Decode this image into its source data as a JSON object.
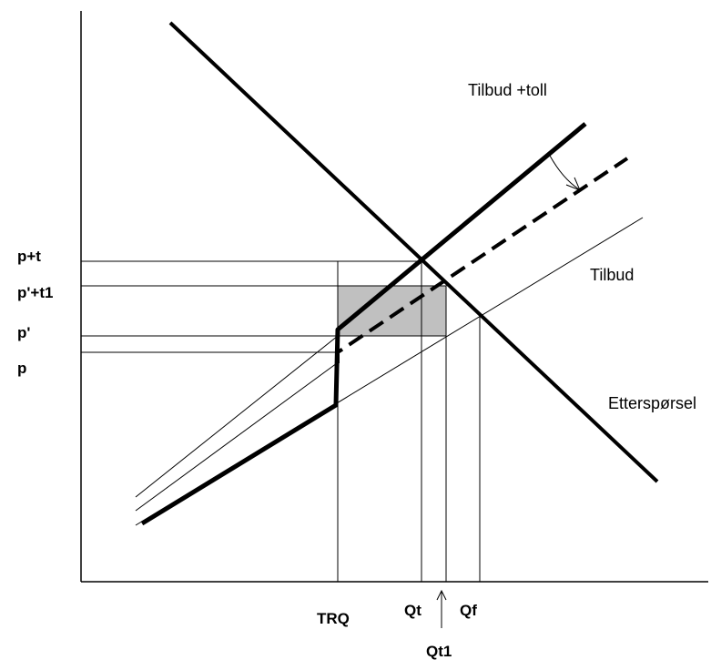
{
  "y_axis_labels": {
    "p_plus_t": "p+t",
    "p_prime_plus_t1": "p'+t1",
    "p_prime": "p'",
    "p": "p"
  },
  "x_axis_labels": {
    "trq": "TRQ",
    "qt": "Qt",
    "qf": "Qf",
    "qt1": "Qt1"
  },
  "curve_labels": {
    "supply_plus_tariff": "Tilbud +toll",
    "supply": "Tilbud",
    "demand": "Etterspørsel"
  },
  "colors": {
    "line": "#000000",
    "shaded_area": "#c0c0c0"
  }
}
